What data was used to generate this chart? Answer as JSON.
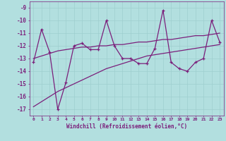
{
  "xlabel": "Windchill (Refroidissement éolien,°C)",
  "x": [
    0,
    1,
    2,
    3,
    4,
    5,
    6,
    7,
    8,
    9,
    10,
    11,
    12,
    13,
    14,
    15,
    16,
    17,
    18,
    19,
    20,
    21,
    22,
    23
  ],
  "y_main": [
    -13.3,
    -10.7,
    -12.5,
    -17.0,
    -14.9,
    -12.0,
    -11.8,
    -12.3,
    -12.3,
    -10.0,
    -12.0,
    -13.0,
    -13.0,
    -13.4,
    -13.4,
    -12.2,
    -9.2,
    -13.3,
    -13.8,
    -14.0,
    -13.3,
    -13.0,
    -10.0,
    -11.7
  ],
  "y_upper_trend": [
    -13.0,
    -12.8,
    -12.6,
    -12.4,
    -12.3,
    -12.2,
    -12.1,
    -12.1,
    -12.0,
    -12.0,
    -11.9,
    -11.9,
    -11.8,
    -11.7,
    -11.7,
    -11.6,
    -11.5,
    -11.5,
    -11.4,
    -11.3,
    -11.2,
    -11.2,
    -11.1,
    -11.0
  ],
  "y_lower_trend": [
    -16.8,
    -16.4,
    -16.0,
    -15.6,
    -15.3,
    -15.0,
    -14.7,
    -14.4,
    -14.1,
    -13.8,
    -13.6,
    -13.4,
    -13.2,
    -13.0,
    -12.8,
    -12.7,
    -12.6,
    -12.5,
    -12.4,
    -12.3,
    -12.2,
    -12.1,
    -12.0,
    -11.9
  ],
  "ylim": [
    -17.5,
    -8.5
  ],
  "yticks": [
    -17,
    -16,
    -15,
    -14,
    -13,
    -12,
    -11,
    -10,
    -9
  ],
  "bg_color": "#b2dfdf",
  "grid_color": "#9ecece",
  "line_color": "#7b1f7b"
}
